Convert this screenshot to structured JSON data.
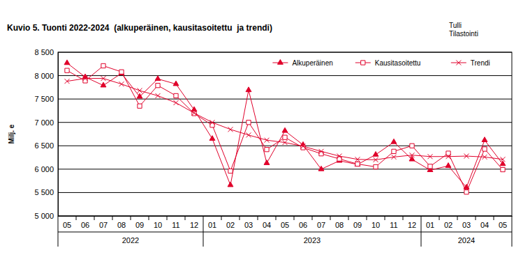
{
  "chart_data": {
    "type": "line",
    "title": "Kuvio 5. Tuonti 2022-2024  (alkuperäinen, kausitasoitettu  ja trendi)",
    "source": [
      "Tulli",
      "Tilastointi"
    ],
    "y_label": "Milj. e",
    "categories": [
      "05",
      "06",
      "07",
      "08",
      "09",
      "10",
      "11",
      "12",
      "01",
      "02",
      "03",
      "04",
      "05",
      "06",
      "07",
      "08",
      "09",
      "10",
      "11",
      "12",
      "01",
      "02",
      "03",
      "04",
      "05"
    ],
    "years": [
      "2022",
      "2022",
      "2022",
      "2022",
      "2022",
      "2022",
      "2022",
      "2022",
      "2023",
      "2023",
      "2023",
      "2023",
      "2023",
      "2023",
      "2023",
      "2023",
      "2023",
      "2023",
      "2023",
      "2023",
      "2024",
      "2024",
      "2024",
      "2024",
      "2024"
    ],
    "series": [
      {
        "name": "Alkuperäinen",
        "color": "#e0002a",
        "marker": "triangle",
        "line_style": "solid",
        "values": [
          8270,
          7970,
          7790,
          8050,
          7550,
          7930,
          7820,
          7270,
          6650,
          5660,
          7690,
          6130,
          6820,
          6520,
          6000,
          6180,
          6100,
          6310,
          6580,
          6210,
          5980,
          6070,
          5610,
          6620,
          6110
        ]
      },
      {
        "name": "Kausitasoitettu",
        "color": "#e0002a",
        "marker": "square",
        "line_style": "solid",
        "values": [
          8110,
          7890,
          8210,
          8080,
          7350,
          7790,
          7570,
          7190,
          6940,
          5960,
          7000,
          6420,
          6680,
          6460,
          6330,
          6220,
          6110,
          6050,
          6380,
          6500,
          6060,
          6340,
          5510,
          6430,
          5990
        ]
      },
      {
        "name": "Trendi",
        "color": "#e0002a",
        "marker": "x",
        "line_style": "solid",
        "values": [
          7880,
          7940,
          7940,
          7820,
          7680,
          7570,
          7420,
          7200,
          7000,
          6850,
          6730,
          6620,
          6570,
          6490,
          6380,
          6280,
          6210,
          6200,
          6260,
          6300,
          6270,
          6270,
          6280,
          6260,
          6210
        ]
      }
    ],
    "ylim": [
      5000,
      8500
    ],
    "yticks": [
      {
        "value": 5000,
        "label": "5 000"
      },
      {
        "value": 5500,
        "label": "5 500"
      },
      {
        "value": 6000,
        "label": "6 000"
      },
      {
        "value": 6500,
        "label": "6 500"
      },
      {
        "value": 7000,
        "label": "7 000"
      },
      {
        "value": 7500,
        "label": "7 500"
      },
      {
        "value": 8000,
        "label": "8 000"
      },
      {
        "value": 8500,
        "label": "8 500"
      }
    ],
    "grid": true,
    "legend": "top-right"
  }
}
